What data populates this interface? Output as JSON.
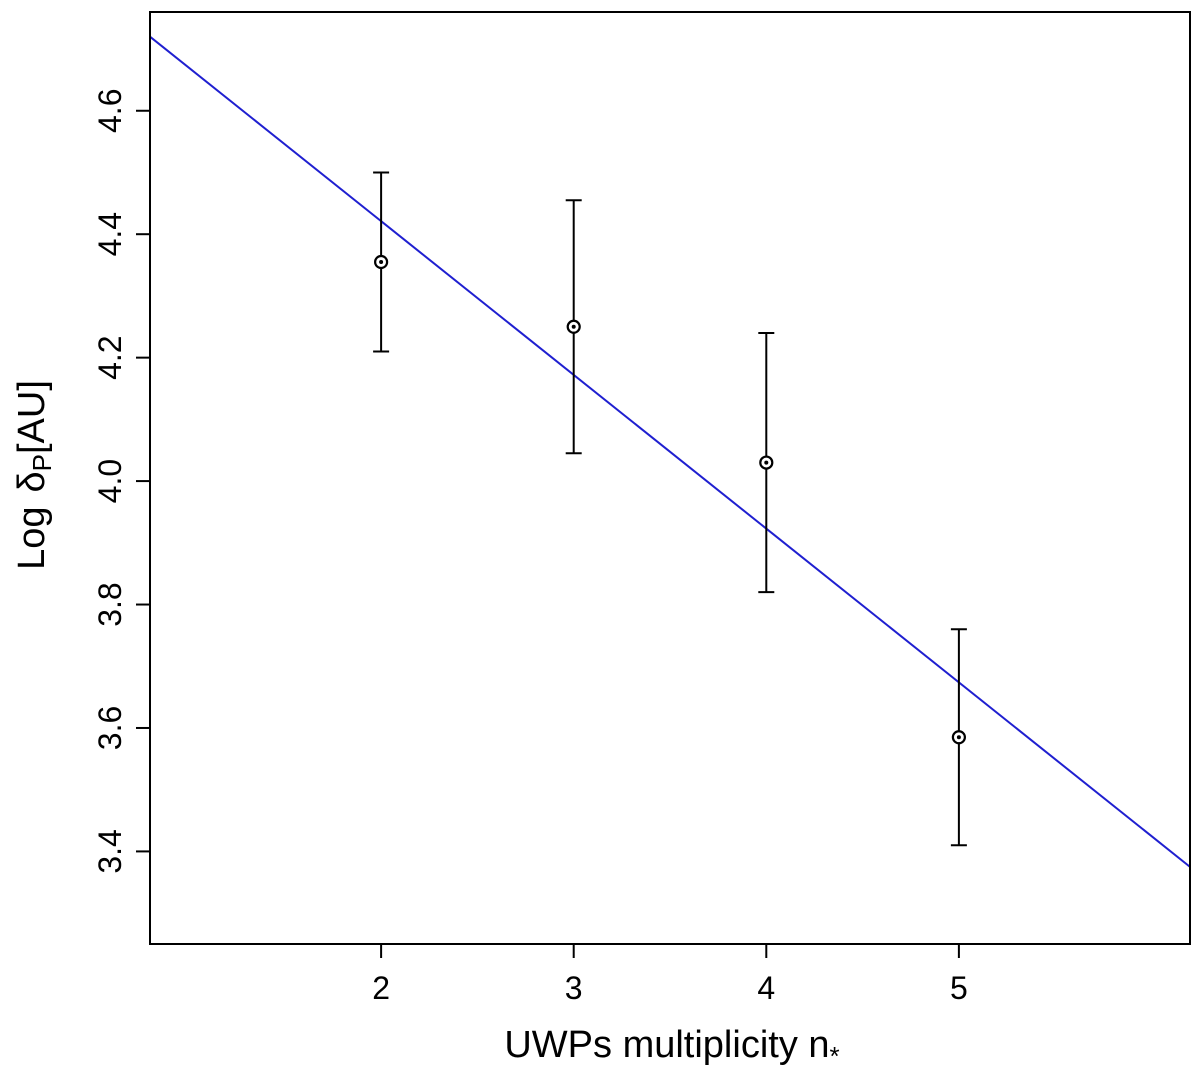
{
  "chart_data": {
    "type": "scatter",
    "xlabel": "UWPs multiplicity n",
    "xlabel_subscript": "*",
    "ylabel_prefix": "Log",
    "ylabel_symbol": "δ",
    "ylabel_subscript": "P",
    "ylabel_unit": "[AU]",
    "xlim": [
      0.8,
      6.2
    ],
    "ylim": [
      3.25,
      4.76
    ],
    "x_ticks": [
      2,
      3,
      4,
      5
    ],
    "x_tick_labels": [
      "2",
      "3",
      "4",
      "5"
    ],
    "y_ticks": [
      3.4,
      3.6,
      3.8,
      4.0,
      4.2,
      4.4,
      4.6
    ],
    "y_tick_labels": [
      "3.4",
      "3.6",
      "3.8",
      "4.0",
      "4.2",
      "4.4",
      "4.6"
    ],
    "grid": false,
    "legend": "none",
    "points": [
      {
        "x": 2,
        "y": 4.355,
        "y_low": 4.21,
        "y_high": 4.5
      },
      {
        "x": 3,
        "y": 4.25,
        "y_low": 4.045,
        "y_high": 4.455
      },
      {
        "x": 4,
        "y": 4.03,
        "y_low": 3.82,
        "y_high": 4.24
      },
      {
        "x": 5,
        "y": 3.585,
        "y_low": 3.41,
        "y_high": 3.76
      }
    ],
    "fit_line": {
      "x": [
        0.8,
        6.2
      ],
      "y": [
        4.72,
        3.375
      ]
    },
    "colors": {
      "points": "#000000",
      "fit_line": "#1f1fd0",
      "axes": "#000000"
    }
  }
}
